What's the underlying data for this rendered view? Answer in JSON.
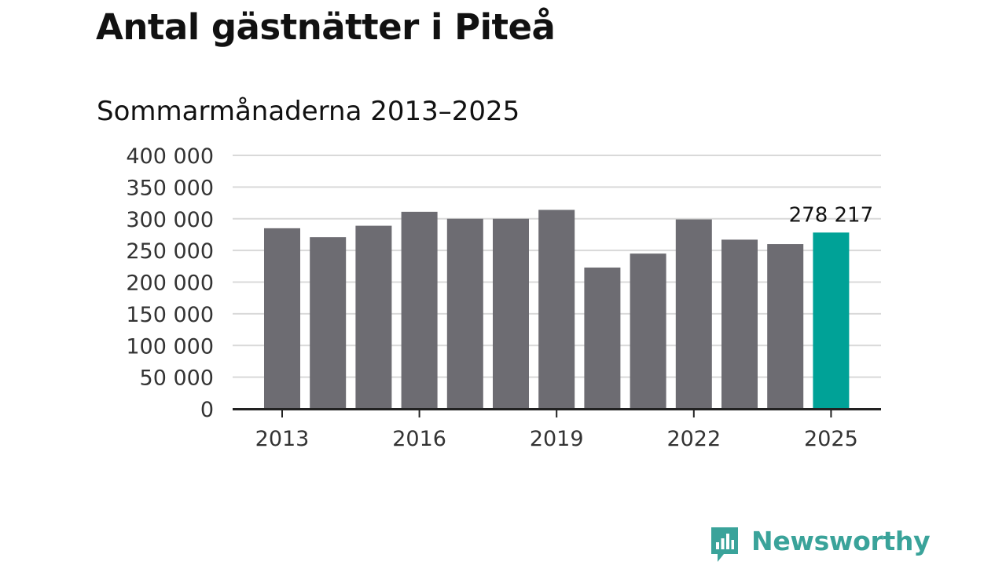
{
  "title": "Antal gästnätter i Piteå",
  "subtitle": "Sommarmånaderna 2013–2025",
  "brand": {
    "name": "Newsworthy",
    "icon": "newsworthy-logo-icon",
    "color": "#3aa39a"
  },
  "colors": {
    "bar": "#6d6c72",
    "highlight": "#00a297",
    "grid": "#d9d9d9",
    "axis": "#222222",
    "text": "#333333"
  },
  "chart_data": {
    "type": "bar",
    "title": "Antal gästnätter i Piteå",
    "subtitle": "Sommarmånaderna 2013–2025",
    "categories": [
      "2013",
      "2014",
      "2015",
      "2016",
      "2017",
      "2018",
      "2019",
      "2020",
      "2021",
      "2022",
      "2023",
      "2024",
      "2025"
    ],
    "values": [
      285000,
      271000,
      289000,
      311000,
      300000,
      300000,
      314000,
      223000,
      245000,
      299000,
      267000,
      260000,
      278217
    ],
    "x_tick_labels": [
      "2013",
      "2016",
      "2019",
      "2022",
      "2025"
    ],
    "y_ticks": [
      0,
      50000,
      100000,
      150000,
      200000,
      250000,
      300000,
      350000,
      400000
    ],
    "y_tick_labels": [
      "0",
      "50 000",
      "100 000",
      "150 000",
      "200 000",
      "250 000",
      "300 000",
      "350 000",
      "400 000"
    ],
    "ylim": [
      0,
      400000
    ],
    "grid": true,
    "highlight_category": "2025",
    "data_labels": [
      {
        "category": "2025",
        "label": "278 217"
      }
    ],
    "xlabel": "",
    "ylabel": ""
  }
}
